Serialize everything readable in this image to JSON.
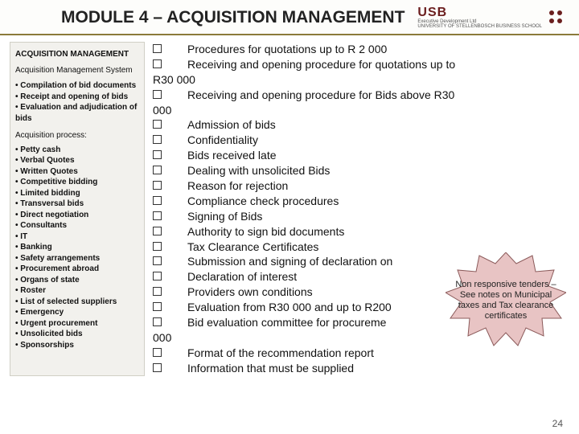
{
  "header": {
    "title": "MODULE 4 – ACQUISITION MANAGEMENT",
    "logo_main": "USB",
    "logo_sub1": "Executive Development Ltd",
    "logo_sub2": "UNIVERSITY OF STELLENBOSCH BUSINESS SCHOOL"
  },
  "sidebar": {
    "heading": "ACQUISITION MANAGEMENT",
    "sub1": "Acquisition Management System",
    "list1": [
      "Compilation of bid documents",
      "Receipt and opening of bids",
      "Evaluation and adjudication of bids"
    ],
    "sub2": "Acquisition process:",
    "list2": [
      "Petty cash",
      "Verbal Quotes",
      "Written Quotes",
      "Competitive bidding",
      "Limited bidding",
      "Transversal bids",
      "Direct negotiation",
      "Consultants",
      "IT",
      "Banking",
      "Safety arrangements",
      "Procurement abroad",
      "Organs of state",
      "Roster",
      "List of selected suppliers",
      "Emergency",
      "Urgent procurement",
      "Unsolicited bids",
      "Sponsorships"
    ]
  },
  "main": {
    "rows": [
      {
        "box": true,
        "text": "Procedures for quotations up to R 2 000"
      },
      {
        "box": true,
        "text": "Receiving and opening procedure for quotations up to"
      },
      {
        "box": false,
        "text": "R30 000",
        "wrap": true
      },
      {
        "box": true,
        "text": "Receiving and opening procedure for Bids above R30"
      },
      {
        "box": false,
        "text": "000",
        "wrap": true
      },
      {
        "box": true,
        "text": "Admission of bids"
      },
      {
        "box": true,
        "text": "Confidentiality"
      },
      {
        "box": true,
        "text": "Bids received late"
      },
      {
        "box": true,
        "text": "Dealing with unsolicited Bids"
      },
      {
        "box": true,
        "text": "Reason for rejection"
      },
      {
        "box": true,
        "text": "Compliance check procedures"
      },
      {
        "box": true,
        "text": "Signing of Bids"
      },
      {
        "box": true,
        "text": "Authority to sign bid documents"
      },
      {
        "box": true,
        "text": "Tax Clearance Certificates"
      },
      {
        "box": true,
        "text": "Submission and signing of declaration on"
      },
      {
        "box": true,
        "text": "Declaration of interest"
      },
      {
        "box": true,
        "text": "Providers own conditions"
      },
      {
        "box": true,
        "text": "Evaluation from R30 000 and up to R200"
      },
      {
        "box": true,
        "text": "Bid evaluation committee for procureme"
      },
      {
        "box": false,
        "text": "000",
        "wrap": true
      },
      {
        "box": true,
        "text": "Format of the recommendation report"
      },
      {
        "box": true,
        "text": "Information that must be supplied"
      }
    ]
  },
  "callout": {
    "text": "Non responsive tenders – See notes on Municipal taxes and Tax clearance certificates",
    "fill": "#e8c4c4",
    "stroke": "#8b5a5a"
  },
  "page_number": "24"
}
